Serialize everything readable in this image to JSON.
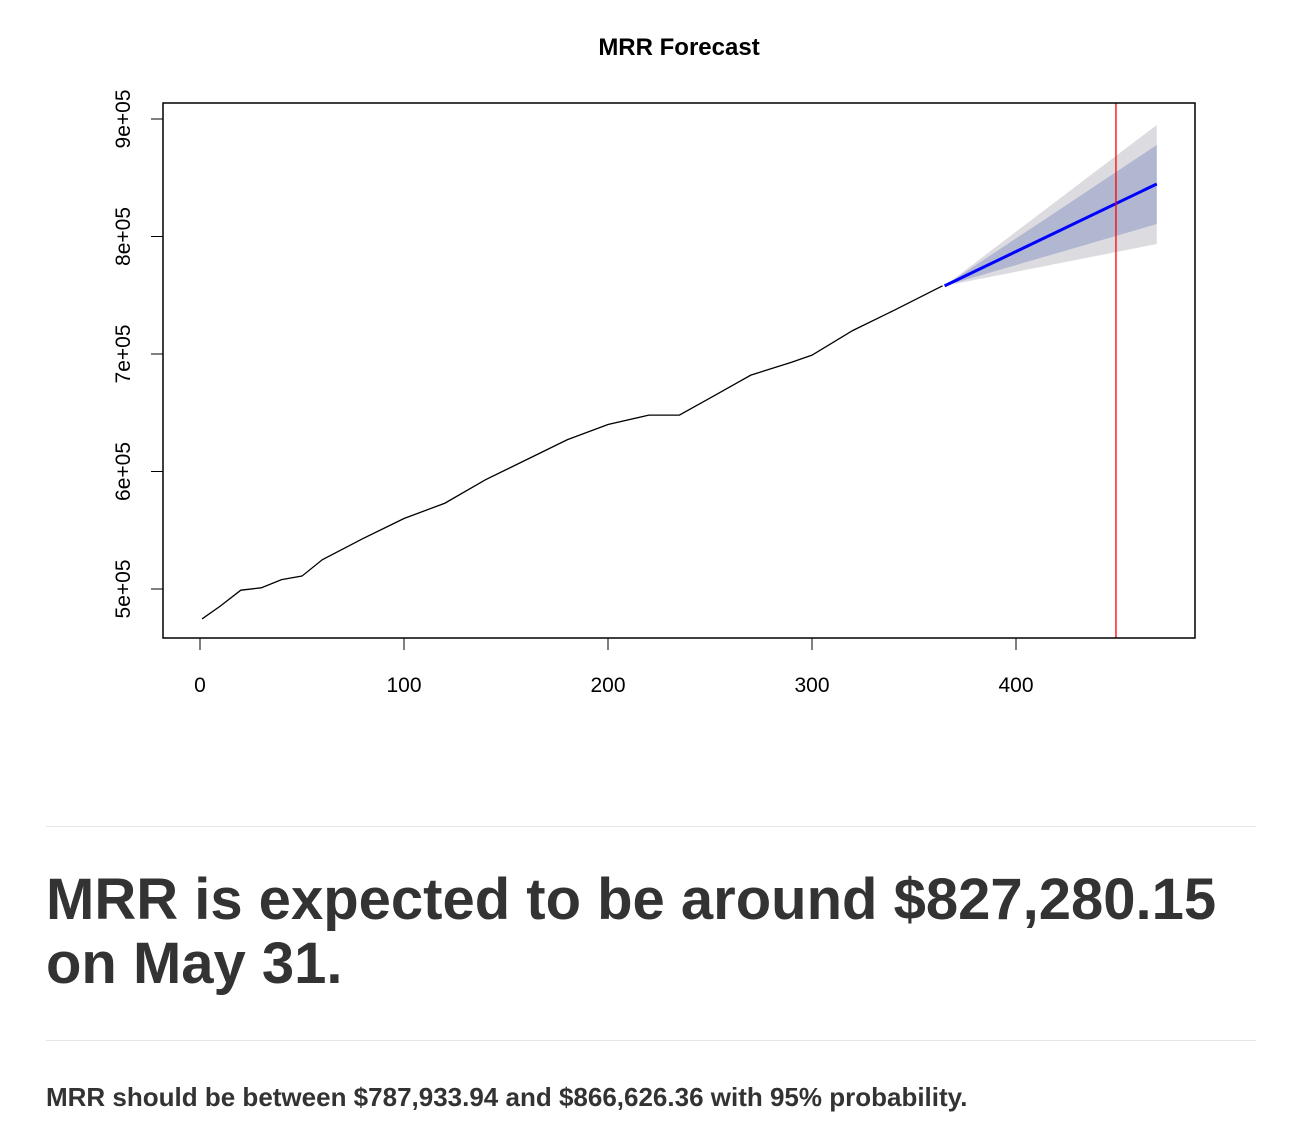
{
  "chart_data": {
    "type": "line",
    "title": "MRR Forecast",
    "xlabel": "",
    "ylabel": "",
    "xlim": [
      -18,
      488
    ],
    "ylim": [
      455000,
      913000
    ],
    "xticks": [
      "0",
      "100",
      "200",
      "300",
      "400"
    ],
    "yticks": [
      "5e+05",
      "6e+05",
      "7e+05",
      "8e+05",
      "9e+05"
    ],
    "grid": false,
    "series": [
      {
        "role": "history",
        "color": "#000000",
        "x": [
          1,
          10,
          20,
          30,
          40,
          50,
          60,
          80,
          100,
          120,
          140,
          160,
          180,
          200,
          220,
          235,
          250,
          270,
          290,
          300,
          320,
          340,
          364
        ],
        "y": [
          474500,
          485500,
          499000,
          501000,
          508000,
          511000,
          525000,
          543000,
          560000,
          573000,
          593000,
          610000,
          627000,
          640000,
          648000,
          648000,
          662500,
          682000,
          693000,
          699000,
          720000,
          737000,
          758000
        ]
      },
      {
        "role": "forecast",
        "color": "#0000ff",
        "x": [
          365,
          469
        ],
        "y": [
          758000,
          844700
        ]
      }
    ],
    "bands": [
      {
        "level": "95%",
        "color": "#dbdbe0",
        "x": [
          365,
          469
        ],
        "lower": [
          758000,
          793600
        ],
        "upper": [
          758000,
          894900
        ]
      },
      {
        "level": "80%",
        "color": "#b1b6d1",
        "x": [
          365,
          469
        ],
        "lower": [
          758000,
          810600
        ],
        "upper": [
          758000,
          877900
        ]
      }
    ],
    "vline": {
      "x": 449,
      "color": "#ff0000"
    }
  },
  "summary": {
    "headline": "MRR is expected to be around $827,280.15 on May 31.",
    "range_text": "MRR should be between $787,933.94 and $866,626.36 with 95% probability."
  }
}
